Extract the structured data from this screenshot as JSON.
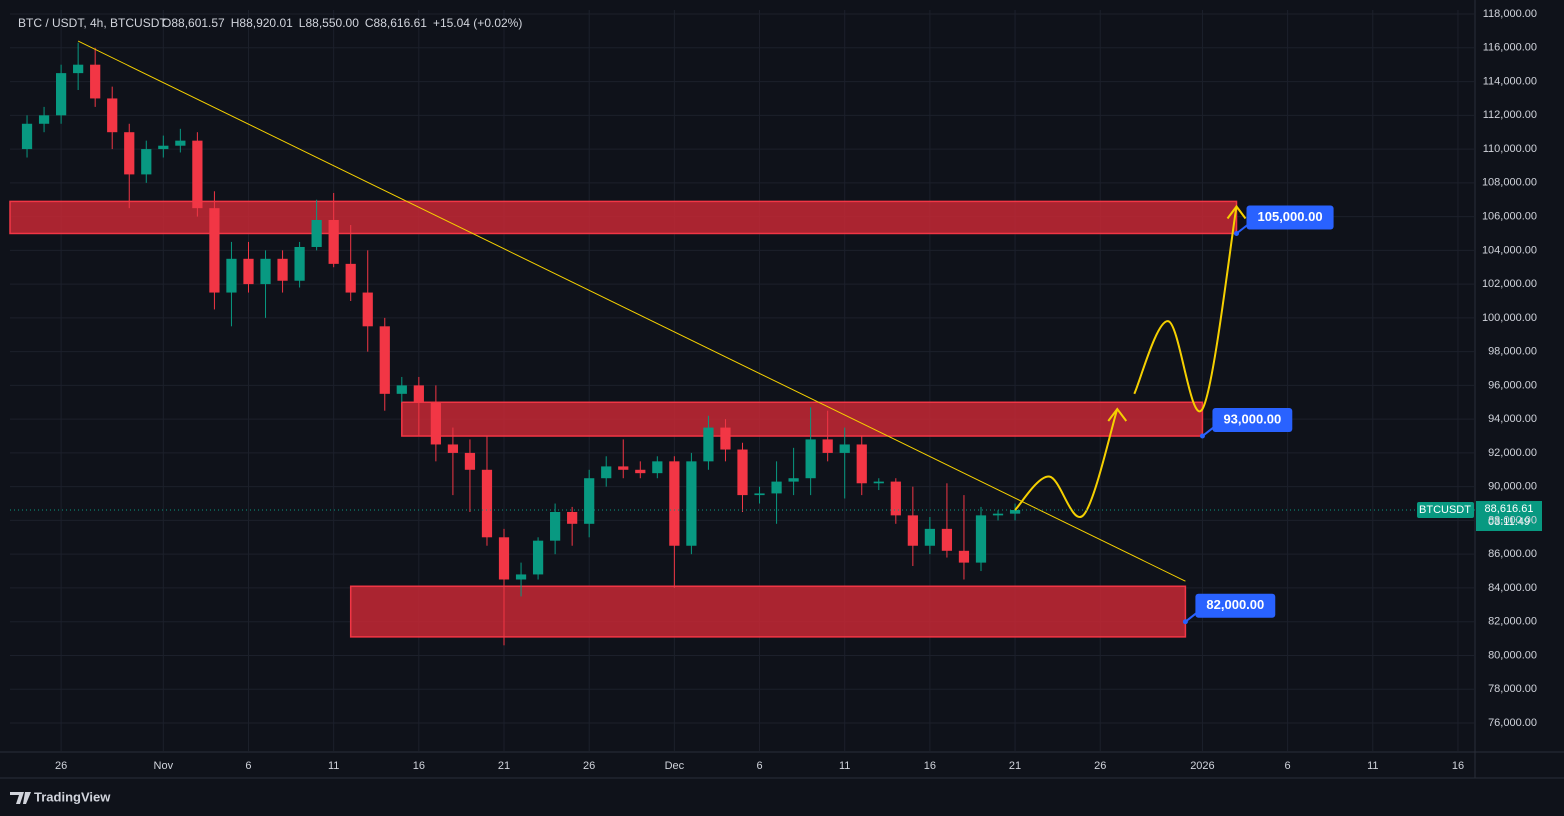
{
  "chart_data": {
    "type": "candlestick",
    "header": {
      "symbol": "BTC / USDT, 4h, BTCUSDT",
      "ohlc": [
        {
          "key": "O",
          "value": "88,601.57"
        },
        {
          "key": "H",
          "value": "88,920.01"
        },
        {
          "key": "L",
          "value": "88,550.00"
        },
        {
          "key": "C",
          "value": "88,616.61"
        }
      ],
      "change": "+15.04 (+0.02%)"
    },
    "x": [
      "Oct 24",
      "Oct 25",
      "Oct 26",
      "Oct 27",
      "Oct 28",
      "Oct 29",
      "Oct 30",
      "Oct 31",
      "Nov 1",
      "Nov 2",
      "Nov 3",
      "Nov 4",
      "Nov 5",
      "Nov 6",
      "Nov 7",
      "Nov 8",
      "Nov 9",
      "Nov 10",
      "Nov 11",
      "Nov 12",
      "Nov 13",
      "Nov 14",
      "Nov 15",
      "Nov 16",
      "Nov 17",
      "Nov 18",
      "Nov 19",
      "Nov 20",
      "Nov 21",
      "Nov 22",
      "Nov 23",
      "Nov 24",
      "Nov 25",
      "Nov 26",
      "Nov 27",
      "Nov 28",
      "Nov 29",
      "Nov 30",
      "Dec 1",
      "Dec 2",
      "Dec 3",
      "Dec 4",
      "Dec 5",
      "Dec 6",
      "Dec 7",
      "Dec 8",
      "Dec 9",
      "Dec 10",
      "Dec 11",
      "Dec 12",
      "Dec 13",
      "Dec 14",
      "Dec 15",
      "Dec 16",
      "Dec 17",
      "Dec 18",
      "Dec 19",
      "Dec 20",
      "Dec 21"
    ],
    "open": [
      110000,
      111500,
      112000,
      114500,
      115000,
      113000,
      111000,
      108500,
      110000,
      110200,
      110500,
      106500,
      101500,
      103500,
      102000,
      103500,
      102200,
      104200,
      105800,
      103200,
      101500,
      99500,
      95500,
      96000,
      95000,
      92500,
      92000,
      91000,
      87000,
      84500,
      84800,
      86800,
      88500,
      87800,
      90500,
      91200,
      91000,
      90800,
      91500,
      86500,
      91500,
      93500,
      92200,
      89500,
      89600,
      90300,
      90500,
      92800,
      92000,
      92500,
      90200,
      90300,
      88300,
      86500,
      87500,
      86200,
      85500,
      88300,
      88400
    ],
    "high": [
      112000,
      112500,
      115000,
      116300,
      116000,
      113700,
      111500,
      110500,
      110800,
      111200,
      111000,
      107500,
      104500,
      104500,
      104000,
      104000,
      104500,
      107000,
      107400,
      105500,
      104000,
      100000,
      96500,
      96500,
      96000,
      93500,
      92800,
      93000,
      87500,
      85500,
      87000,
      89000,
      88800,
      91000,
      91800,
      92800,
      91500,
      91800,
      91800,
      92000,
      94200,
      94000,
      92600,
      90000,
      91500,
      92300,
      94700,
      94500,
      93500,
      93000,
      90500,
      90500,
      90000,
      88200,
      90200,
      89500,
      88800,
      88600,
      89000
    ],
    "low": [
      109500,
      111000,
      111500,
      113500,
      112500,
      110000,
      106500,
      108000,
      109500,
      109800,
      106000,
      100500,
      99500,
      101500,
      100000,
      101500,
      101800,
      104000,
      103000,
      101000,
      98000,
      94500,
      95000,
      93000,
      91500,
      89500,
      88500,
      86500,
      80600,
      83500,
      84500,
      86000,
      86500,
      87000,
      90000,
      90500,
      90500,
      90500,
      84000,
      86000,
      91000,
      91500,
      88500,
      89000,
      87800,
      89500,
      89500,
      91500,
      89300,
      89500,
      89800,
      87800,
      85300,
      86000,
      85800,
      84500,
      85000,
      88000,
      88000
    ],
    "close": [
      111500,
      112000,
      114500,
      115000,
      113000,
      111000,
      108500,
      110000,
      110200,
      110500,
      106500,
      101500,
      103500,
      102000,
      103500,
      102200,
      104200,
      105800,
      103200,
      101500,
      99500,
      95500,
      96000,
      95000,
      92500,
      92000,
      91000,
      87000,
      84500,
      84800,
      86800,
      88500,
      87800,
      90500,
      91200,
      91000,
      90800,
      91500,
      86500,
      91500,
      93500,
      92200,
      89500,
      89600,
      90300,
      90500,
      92800,
      92000,
      92500,
      90200,
      90300,
      88300,
      86500,
      87500,
      86200,
      85500,
      88300,
      88400,
      88616.61
    ],
    "up_color": "#089981",
    "down_color": "#f23645",
    "xlim": [
      "Oct 23",
      "Jan 17"
    ],
    "xticks": [
      {
        "value": "Oct 26",
        "label": "26"
      },
      {
        "value": "Nov 1",
        "label": "Nov"
      },
      {
        "value": "Nov 6",
        "label": "6"
      },
      {
        "value": "Nov 11",
        "label": "11"
      },
      {
        "value": "Nov 16",
        "label": "16"
      },
      {
        "value": "Nov 21",
        "label": "21"
      },
      {
        "value": "Nov 26",
        "label": "26"
      },
      {
        "value": "Dec 1",
        "label": "Dec"
      },
      {
        "value": "Dec 6",
        "label": "6"
      },
      {
        "value": "Dec 11",
        "label": "11"
      },
      {
        "value": "Dec 16",
        "label": "16"
      },
      {
        "value": "Dec 21",
        "label": "21"
      },
      {
        "value": "Dec 26",
        "label": "26"
      },
      {
        "value": "Jan 1",
        "label": "2026"
      },
      {
        "value": "Jan 6",
        "label": "6"
      },
      {
        "value": "Jan 11",
        "label": "11"
      },
      {
        "value": "Jan 16",
        "label": "16"
      }
    ],
    "ylim": [
      74280,
      118240
    ],
    "yticks": [
      {
        "value": 76000,
        "label": "76,000.00"
      },
      {
        "value": 78000,
        "label": "78,000.00"
      },
      {
        "value": 80000,
        "label": "80,000.00"
      },
      {
        "value": 82000,
        "label": "82,000.00"
      },
      {
        "value": 84000,
        "label": "84,000.00"
      },
      {
        "value": 86000,
        "label": "86,000.00"
      },
      {
        "value": 88000,
        "label": "88,000.00"
      },
      {
        "value": 90000,
        "label": "90,000.00"
      },
      {
        "value": 92000,
        "label": "92,000.00"
      },
      {
        "value": 94000,
        "label": "94,000.00"
      },
      {
        "value": 96000,
        "label": "96,000.00"
      },
      {
        "value": 98000,
        "label": "98,000.00"
      },
      {
        "value": 100000,
        "label": "100,000.00"
      },
      {
        "value": 102000,
        "label": "102,000.00"
      },
      {
        "value": 104000,
        "label": "104,000.00"
      },
      {
        "value": 106000,
        "label": "106,000.00"
      },
      {
        "value": 108000,
        "label": "108,000.00"
      },
      {
        "value": 110000,
        "label": "110,000.00"
      },
      {
        "value": 112000,
        "label": "112,000.00"
      },
      {
        "value": 114000,
        "label": "114,000.00"
      },
      {
        "value": 116000,
        "label": "116,000.00"
      },
      {
        "value": 118000,
        "label": "118,000.00"
      }
    ],
    "grid": true,
    "zones": [
      {
        "low": 105000,
        "high": 106900,
        "start": "Oct 23",
        "end": "Jan 3",
        "target": {
          "value": 105000,
          "label": "105,000.00"
        }
      },
      {
        "low": 93000,
        "high": 95000,
        "start": "Nov 15",
        "end": "Jan 1",
        "target": {
          "value": 93000,
          "label": "93,000.00"
        }
      },
      {
        "low": 81100,
        "high": 84100,
        "start": "Nov 12",
        "end": "Dec 31",
        "target": {
          "value": 82000,
          "label": "82,000.00"
        }
      }
    ],
    "zone_color": "#c62835",
    "trendline": {
      "x": [
        "Oct 27",
        "Dec 31"
      ],
      "values": [
        116400,
        84400
      ],
      "color": "#f5d000"
    },
    "projection": {
      "color": "#f5d000",
      "paths": [
        {
          "x": [
            "Dec 21",
            "Dec 23",
            "Dec 25",
            "Dec 27"
          ],
          "values": [
            88616.61,
            90600,
            88300,
            94600
          ]
        },
        {
          "x": [
            "Dec 28",
            "Dec 30",
            "Jan 1",
            "Jan 3"
          ],
          "values": [
            95500,
            99800,
            94600,
            106600
          ]
        }
      ]
    },
    "last_price": {
      "name": "BTCUSDT",
      "value": 88616.61,
      "label": "88,616.61",
      "countdown": "03:11:49"
    },
    "watermark": "TradingView"
  }
}
